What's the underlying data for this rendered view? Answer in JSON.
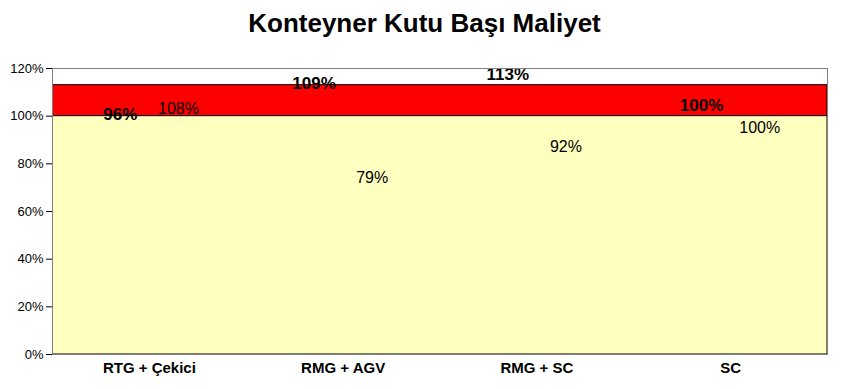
{
  "chart_data": {
    "type": "bar",
    "title": "Konteyner Kutu Başı Maliyet",
    "categories": [
      "RTG + Çekici",
      "RMG + AGV",
      "RMG + SC",
      "SC"
    ],
    "series": [
      {
        "colors": [
          "#0000ff",
          "#33cc00",
          "#ff0000",
          "#a6a6a6"
        ],
        "values": [
          96,
          109,
          113,
          100
        ],
        "value_labels": [
          "96%",
          "109%",
          "113%",
          "100%"
        ]
      },
      {
        "color": "#ffffc0",
        "values": [
          108,
          79,
          92,
          100
        ],
        "value_labels": [
          "108%",
          "79%",
          "92%",
          "100%"
        ]
      }
    ],
    "ylim": [
      0,
      120
    ],
    "yticks": [
      {
        "value": 0,
        "label": "0%"
      },
      {
        "value": 20,
        "label": "20%"
      },
      {
        "value": 40,
        "label": "40%"
      },
      {
        "value": 60,
        "label": "60%"
      },
      {
        "value": 80,
        "label": "80%"
      },
      {
        "value": 100,
        "label": "100%"
      },
      {
        "value": 120,
        "label": "120%"
      }
    ],
    "grid": false,
    "data_labels": true
  }
}
